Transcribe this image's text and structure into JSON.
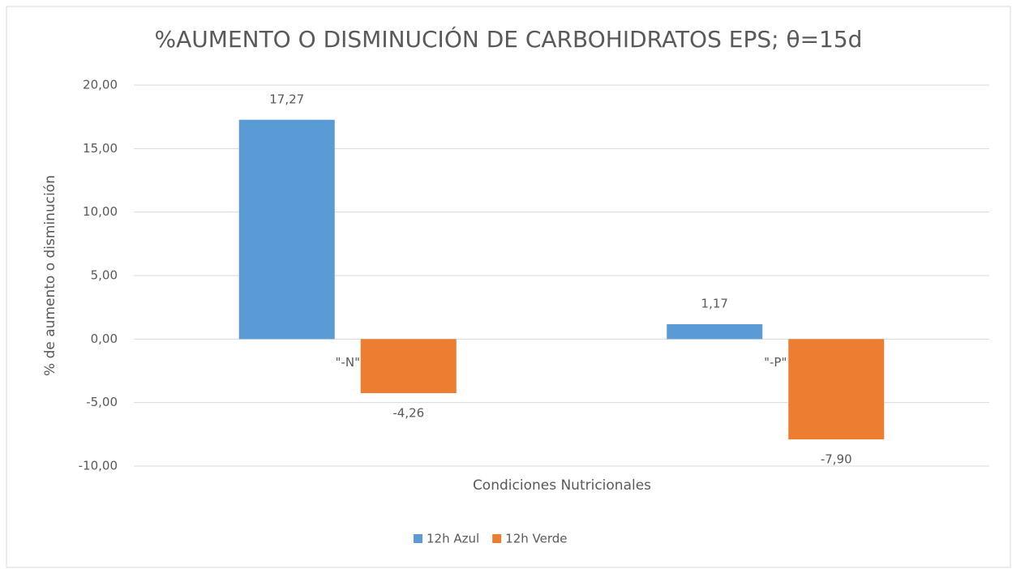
{
  "chart_data": {
    "type": "bar",
    "title": "%AUMENTO O DISMINUCIÓN DE CARBOHIDRATOS EPS; θ=15d",
    "x_label": "Condiciones Nutricionales",
    "y_label": "% de aumento o disminución",
    "categories": [
      "\"-N\"",
      "\"-P\""
    ],
    "series": [
      {
        "name": "12h Azul",
        "color": "#5b9bd5",
        "values": [
          17.27,
          1.17
        ],
        "value_labels": [
          "17,27",
          "1,17"
        ]
      },
      {
        "name": "12h Verde",
        "color": "#ed7d31",
        "values": [
          -4.26,
          -7.9
        ],
        "value_labels": [
          "-4,26",
          "-7,90"
        ]
      }
    ],
    "ylim": [
      -10,
      20
    ],
    "yticks": [
      {
        "value": -10,
        "label": "-10,00"
      },
      {
        "value": -5,
        "label": "-5,00"
      },
      {
        "value": 0,
        "label": "0,00"
      },
      {
        "value": 5,
        "label": "5,00"
      },
      {
        "value": 10,
        "label": "10,00"
      },
      {
        "value": 15,
        "label": "15,00"
      },
      {
        "value": 20,
        "label": "20,00"
      }
    ],
    "grid": true,
    "legend": "bottom"
  }
}
